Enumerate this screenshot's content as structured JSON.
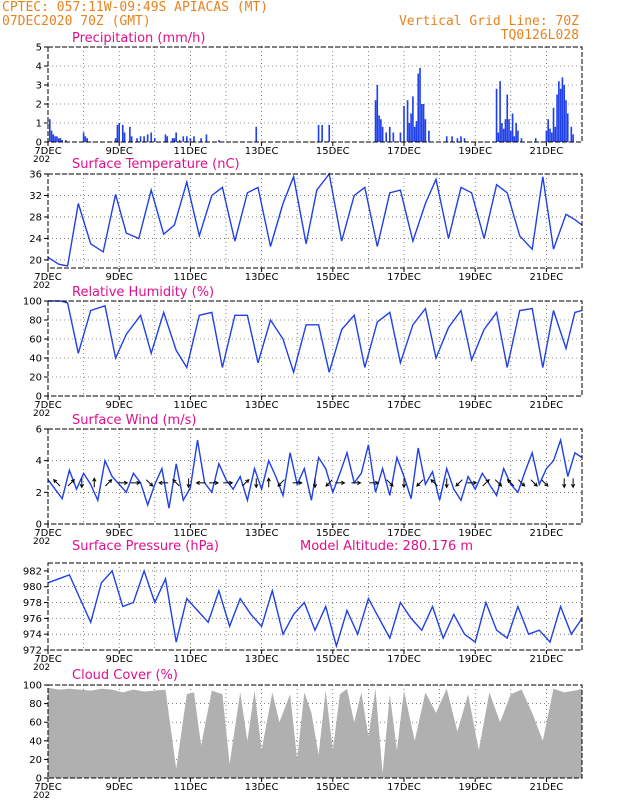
{
  "header": {
    "line1": "CPTEC:   057:11W-09:49S  APIACAS (MT)",
    "line2": "07DEC2020 70Z (GMT)",
    "grid_note": "Vertical Grid Line: 70Z",
    "run_code": "TQ0126L028",
    "color": "#e8821e"
  },
  "colors": {
    "title": "#e0108c",
    "line": "#2040e8",
    "bar": "#2040e8",
    "cloud": "#b0b0b0"
  },
  "x_axis": {
    "start_day": 7,
    "end_day": 22,
    "tick_labels": [
      {
        "day": 7,
        "label": "7DEC"
      },
      {
        "day": 9,
        "label": "9DEC"
      },
      {
        "day": 11,
        "label": "11DEC"
      },
      {
        "day": 13,
        "label": "13DEC"
      },
      {
        "day": 15,
        "label": "15DEC"
      },
      {
        "day": 17,
        "label": "17DEC"
      },
      {
        "day": 19,
        "label": "19DEC"
      },
      {
        "day": 21,
        "label": "21DEC"
      }
    ],
    "year_fragment": "202"
  },
  "chart_data": [
    {
      "id": "precip",
      "type": "bar",
      "title": "Precipitation (mm/h)",
      "ylim": [
        0,
        5
      ],
      "yticks": [
        "0",
        "1",
        "2",
        "3",
        "4",
        "5"
      ],
      "grid": true,
      "x": [
        7.05,
        7.1,
        7.15,
        7.2,
        7.25,
        7.3,
        7.35,
        7.4,
        7.5,
        8.0,
        8.05,
        8.1,
        8.9,
        8.95,
        9.0,
        9.1,
        9.15,
        9.3,
        9.35,
        9.5,
        9.6,
        9.7,
        9.8,
        9.9,
        10.0,
        10.3,
        10.35,
        10.5,
        10.55,
        10.6,
        10.7,
        10.8,
        10.9,
        11.0,
        11.1,
        11.3,
        11.45,
        11.8,
        12.85,
        14.6,
        14.7,
        14.9,
        16.2,
        16.25,
        16.3,
        16.35,
        16.4,
        16.5,
        16.6,
        16.7,
        16.9,
        17.0,
        17.1,
        17.15,
        17.2,
        17.25,
        17.3,
        17.35,
        17.4,
        17.45,
        17.5,
        17.55,
        17.6,
        17.7,
        18.2,
        18.35,
        18.5,
        18.6,
        18.7,
        19.6,
        19.65,
        19.7,
        19.75,
        19.8,
        19.85,
        19.9,
        19.95,
        20.0,
        20.05,
        20.1,
        20.15,
        20.2,
        20.3,
        20.7,
        21.0,
        21.05,
        21.1,
        21.15,
        21.2,
        21.25,
        21.3,
        21.35,
        21.4,
        21.45,
        21.5,
        21.55,
        21.6,
        21.7,
        21.75
      ],
      "values": [
        1.2,
        0.6,
        0.4,
        0.3,
        0.3,
        0.2,
        0.2,
        0.1,
        0.1,
        0.5,
        0.3,
        0.2,
        0.2,
        0.9,
        1.0,
        0.9,
        0.5,
        0.8,
        0.3,
        0.2,
        0.3,
        0.3,
        0.4,
        0.5,
        0.2,
        0.4,
        0.3,
        0.2,
        0.2,
        0.5,
        0.1,
        0.3,
        0.3,
        0.2,
        0.3,
        0.2,
        0.4,
        0.1,
        0.8,
        0.9,
        0.9,
        0.9,
        2.2,
        3.0,
        1.4,
        1.2,
        0.8,
        0.5,
        0.8,
        0.5,
        0.5,
        1.9,
        2.2,
        1.0,
        1.5,
        2.4,
        0.8,
        1.1,
        3.6,
        3.9,
        2.0,
        2.0,
        1.2,
        0.6,
        0.3,
        0.3,
        0.2,
        0.3,
        0.2,
        2.8,
        0.5,
        3.2,
        1.0,
        0.7,
        1.2,
        2.5,
        1.2,
        0.6,
        1.5,
        0.3,
        1.0,
        0.6,
        0.2,
        0.2,
        0.6,
        1.2,
        0.7,
        0.5,
        1.8,
        0.8,
        2.5,
        3.2,
        2.8,
        3.4,
        3.0,
        2.2,
        1.5,
        0.8,
        0.4
      ]
    },
    {
      "id": "temp",
      "type": "line",
      "title": "Surface Temperature (nC)",
      "ylim": [
        18.5,
        36
      ],
      "yticks": [
        "20",
        "24",
        "28",
        "32",
        "36"
      ],
      "ytick_values": [
        20,
        24,
        28,
        32,
        36
      ],
      "grid": true,
      "x": [
        7.0,
        7.3,
        7.55,
        7.85,
        8.2,
        8.55,
        8.9,
        9.2,
        9.55,
        9.9,
        10.25,
        10.55,
        10.9,
        11.25,
        11.6,
        11.9,
        12.25,
        12.6,
        12.9,
        13.25,
        13.6,
        13.9,
        14.25,
        14.55,
        14.9,
        15.25,
        15.6,
        15.9,
        16.25,
        16.6,
        16.9,
        17.25,
        17.6,
        17.9,
        18.25,
        18.6,
        18.9,
        19.25,
        19.6,
        19.9,
        20.25,
        20.6,
        20.9,
        21.2,
        21.55,
        21.8,
        22.0
      ],
      "y": [
        20.5,
        19.2,
        18.9,
        30.5,
        23.0,
        21.5,
        32.2,
        25.0,
        24.0,
        33.0,
        24.8,
        26.5,
        34.5,
        24.5,
        32.0,
        33.5,
        23.5,
        32.5,
        33.5,
        22.5,
        30.5,
        35.5,
        23.0,
        33.0,
        36.0,
        23.5,
        32.0,
        33.5,
        22.5,
        32.5,
        33.0,
        23.5,
        30.5,
        35.0,
        24.0,
        33.5,
        32.5,
        24.0,
        34.0,
        32.5,
        24.5,
        22.0,
        35.5,
        22.0,
        28.5,
        27.5,
        26.5
      ]
    },
    {
      "id": "rh",
      "type": "line",
      "title": "Relative Humidity (%)",
      "ylim": [
        0,
        100
      ],
      "yticks": [
        "0",
        "20",
        "40",
        "60",
        "80",
        "100"
      ],
      "ytick_values": [
        0,
        20,
        40,
        60,
        80,
        100
      ],
      "grid": true,
      "x": [
        7.0,
        7.35,
        7.55,
        7.85,
        8.2,
        8.6,
        8.9,
        9.2,
        9.6,
        9.9,
        10.25,
        10.6,
        10.9,
        11.25,
        11.6,
        11.9,
        12.25,
        12.6,
        12.9,
        13.25,
        13.6,
        13.9,
        14.25,
        14.6,
        14.9,
        15.25,
        15.6,
        15.9,
        16.25,
        16.6,
        16.9,
        17.25,
        17.6,
        17.9,
        18.25,
        18.6,
        18.9,
        19.25,
        19.6,
        19.9,
        20.25,
        20.6,
        20.9,
        21.2,
        21.55,
        21.8,
        22.0
      ],
      "y": [
        100,
        100,
        98,
        45,
        90,
        95,
        40,
        65,
        85,
        45,
        88,
        48,
        30,
        85,
        88,
        30,
        85,
        85,
        35,
        80,
        60,
        25,
        75,
        75,
        25,
        70,
        85,
        30,
        78,
        88,
        35,
        75,
        92,
        40,
        72,
        90,
        38,
        70,
        88,
        30,
        90,
        92,
        30,
        90,
        50,
        88,
        90
      ]
    },
    {
      "id": "wind",
      "type": "line",
      "title": "Surface Wind (m/s)",
      "ylim": [
        0,
        6
      ],
      "yticks": [
        "0",
        "2",
        "4",
        "6"
      ],
      "ytick_values": [
        0,
        2,
        4,
        6
      ],
      "grid": true,
      "x": [
        7.0,
        7.2,
        7.4,
        7.6,
        7.8,
        8.0,
        8.2,
        8.4,
        8.6,
        8.8,
        9.0,
        9.2,
        9.4,
        9.6,
        9.8,
        10.0,
        10.2,
        10.4,
        10.6,
        10.8,
        11.0,
        11.2,
        11.4,
        11.6,
        11.8,
        12.0,
        12.2,
        12.4,
        12.6,
        12.8,
        13.0,
        13.2,
        13.4,
        13.6,
        13.8,
        14.0,
        14.2,
        14.4,
        14.6,
        14.8,
        15.0,
        15.2,
        15.4,
        15.6,
        15.8,
        16.0,
        16.2,
        16.4,
        16.6,
        16.8,
        17.0,
        17.2,
        17.4,
        17.6,
        17.8,
        18.0,
        18.2,
        18.4,
        18.6,
        18.8,
        19.0,
        19.2,
        19.4,
        19.6,
        19.8,
        20.0,
        20.2,
        20.4,
        20.6,
        20.8,
        21.0,
        21.2,
        21.4,
        21.6,
        21.8,
        22.0
      ],
      "y": [
        2.8,
        2.2,
        1.6,
        3.4,
        2.2,
        3.2,
        2.5,
        1.5,
        4.0,
        3.0,
        2.5,
        2.0,
        3.2,
        2.6,
        1.2,
        2.5,
        3.5,
        1.0,
        3.8,
        1.5,
        2.3,
        5.3,
        2.6,
        2.0,
        3.8,
        2.8,
        2.2,
        3.0,
        1.5,
        3.5,
        2.2,
        4.0,
        3.0,
        1.8,
        4.5,
        2.5,
        3.5,
        1.5,
        4.2,
        3.5,
        2.0,
        3.2,
        4.5,
        2.6,
        3.2,
        5.0,
        2.0,
        3.5,
        1.8,
        4.2,
        3.0,
        1.6,
        4.8,
        2.5,
        3.3,
        1.5,
        3.5,
        2.2,
        1.5,
        3.0,
        2.2,
        3.2,
        2.5,
        1.8,
        3.5,
        2.5,
        2.0,
        3.3,
        4.5,
        2.5,
        3.5,
        4.0,
        5.3,
        3.0,
        4.5,
        4.2
      ],
      "arrows": [
        {
          "day": 7.25,
          "dir": "NW"
        },
        {
          "day": 7.65,
          "dir": "NE"
        },
        {
          "day": 7.95,
          "dir": "S"
        },
        {
          "day": 8.3,
          "dir": "N"
        },
        {
          "day": 8.7,
          "dir": "NE"
        },
        {
          "day": 9.1,
          "dir": "E"
        },
        {
          "day": 9.45,
          "dir": "E"
        },
        {
          "day": 9.85,
          "dir": "SE"
        },
        {
          "day": 10.25,
          "dir": "W"
        },
        {
          "day": 10.6,
          "dir": "NW"
        },
        {
          "day": 10.95,
          "dir": "S"
        },
        {
          "day": 11.3,
          "dir": "W"
        },
        {
          "day": 11.65,
          "dir": "E"
        },
        {
          "day": 12.05,
          "dir": "E"
        },
        {
          "day": 12.55,
          "dir": "NE"
        },
        {
          "day": 12.85,
          "dir": "S"
        },
        {
          "day": 13.2,
          "dir": "N"
        },
        {
          "day": 13.55,
          "dir": "SW"
        },
        {
          "day": 14.0,
          "dir": "E"
        },
        {
          "day": 14.5,
          "dir": "S"
        },
        {
          "day": 14.9,
          "dir": "SW"
        },
        {
          "day": 15.2,
          "dir": "E"
        },
        {
          "day": 15.65,
          "dir": "E"
        },
        {
          "day": 16.15,
          "dir": "E"
        },
        {
          "day": 16.6,
          "dir": "SE"
        },
        {
          "day": 17.0,
          "dir": "S"
        },
        {
          "day": 17.45,
          "dir": "SW"
        },
        {
          "day": 17.85,
          "dir": "NW"
        },
        {
          "day": 18.2,
          "dir": "S"
        },
        {
          "day": 18.55,
          "dir": "SW"
        },
        {
          "day": 18.9,
          "dir": "E"
        },
        {
          "day": 19.3,
          "dir": "NE"
        },
        {
          "day": 19.65,
          "dir": "SE"
        },
        {
          "day": 20.0,
          "dir": "NW"
        },
        {
          "day": 20.3,
          "dir": "SE"
        },
        {
          "day": 20.65,
          "dir": "SE"
        },
        {
          "day": 20.95,
          "dir": "SE"
        },
        {
          "day": 21.5,
          "dir": "S"
        },
        {
          "day": 21.75,
          "dir": "S"
        }
      ]
    },
    {
      "id": "press",
      "type": "line",
      "title": "Surface Pressure (hPa)",
      "annotation": "Model Altitude: 280.176 m",
      "ylim": [
        972,
        983
      ],
      "yticks": [
        "972",
        "974",
        "976",
        "978",
        "980",
        "982"
      ],
      "ytick_values": [
        972,
        974,
        976,
        978,
        980,
        982
      ],
      "grid": true,
      "x": [
        7.0,
        7.3,
        7.6,
        7.9,
        8.2,
        8.5,
        8.8,
        9.1,
        9.4,
        9.7,
        10.0,
        10.3,
        10.6,
        10.9,
        11.2,
        11.5,
        11.8,
        12.1,
        12.4,
        12.7,
        13.0,
        13.3,
        13.6,
        13.9,
        14.2,
        14.5,
        14.8,
        15.1,
        15.4,
        15.7,
        16.0,
        16.3,
        16.6,
        16.9,
        17.2,
        17.5,
        17.8,
        18.1,
        18.4,
        18.7,
        19.0,
        19.3,
        19.6,
        19.9,
        20.2,
        20.5,
        20.8,
        21.1,
        21.4,
        21.7,
        22.0
      ],
      "y": [
        980.5,
        981.0,
        981.5,
        978.5,
        975.5,
        980.5,
        982.0,
        977.5,
        978.0,
        982.0,
        978.0,
        981.0,
        973.0,
        978.5,
        977.0,
        975.5,
        979.5,
        975.0,
        978.5,
        976.5,
        975.0,
        979.5,
        974.0,
        976.5,
        978.0,
        974.5,
        977.5,
        972.5,
        977.0,
        974.0,
        978.5,
        976.0,
        973.5,
        978.0,
        976.0,
        974.5,
        977.5,
        973.5,
        976.5,
        974.0,
        973.0,
        978.0,
        974.5,
        973.5,
        977.5,
        974.0,
        974.5,
        973.0,
        977.5,
        974.0,
        976.0
      ]
    },
    {
      "id": "cloud",
      "type": "area",
      "title": "Cloud Cover (%)",
      "ylim": [
        0,
        100
      ],
      "yticks": [
        "0",
        "20",
        "40",
        "60",
        "80",
        "100"
      ],
      "ytick_values": [
        0,
        20,
        40,
        60,
        80,
        100
      ],
      "grid": true,
      "x": [
        7.0,
        7.3,
        7.6,
        7.9,
        8.2,
        8.5,
        8.8,
        9.1,
        9.4,
        9.7,
        10.0,
        10.3,
        10.6,
        10.9,
        11.1,
        11.3,
        11.6,
        11.9,
        12.1,
        12.4,
        12.6,
        12.8,
        13.0,
        13.3,
        13.5,
        13.8,
        14.0,
        14.2,
        14.4,
        14.6,
        14.8,
        15.0,
        15.2,
        15.4,
        15.6,
        15.8,
        16.0,
        16.2,
        16.4,
        16.6,
        16.8,
        17.0,
        17.3,
        17.6,
        17.9,
        18.2,
        18.5,
        18.8,
        19.1,
        19.4,
        19.7,
        20.0,
        20.3,
        20.6,
        20.9,
        21.2,
        21.5,
        21.8,
        22.0
      ],
      "y": [
        97,
        95,
        96,
        95,
        94,
        96,
        95,
        92,
        95,
        93,
        94,
        95,
        10,
        90,
        92,
        35,
        94,
        90,
        15,
        92,
        40,
        94,
        30,
        92,
        60,
        90,
        20,
        92,
        70,
        25,
        94,
        30,
        90,
        96,
        60,
        92,
        45,
        96,
        5,
        90,
        30,
        94,
        40,
        92,
        70,
        96,
        50,
        90,
        30,
        92,
        60,
        90,
        95,
        70,
        40,
        96,
        92,
        94,
        96
      ]
    }
  ]
}
